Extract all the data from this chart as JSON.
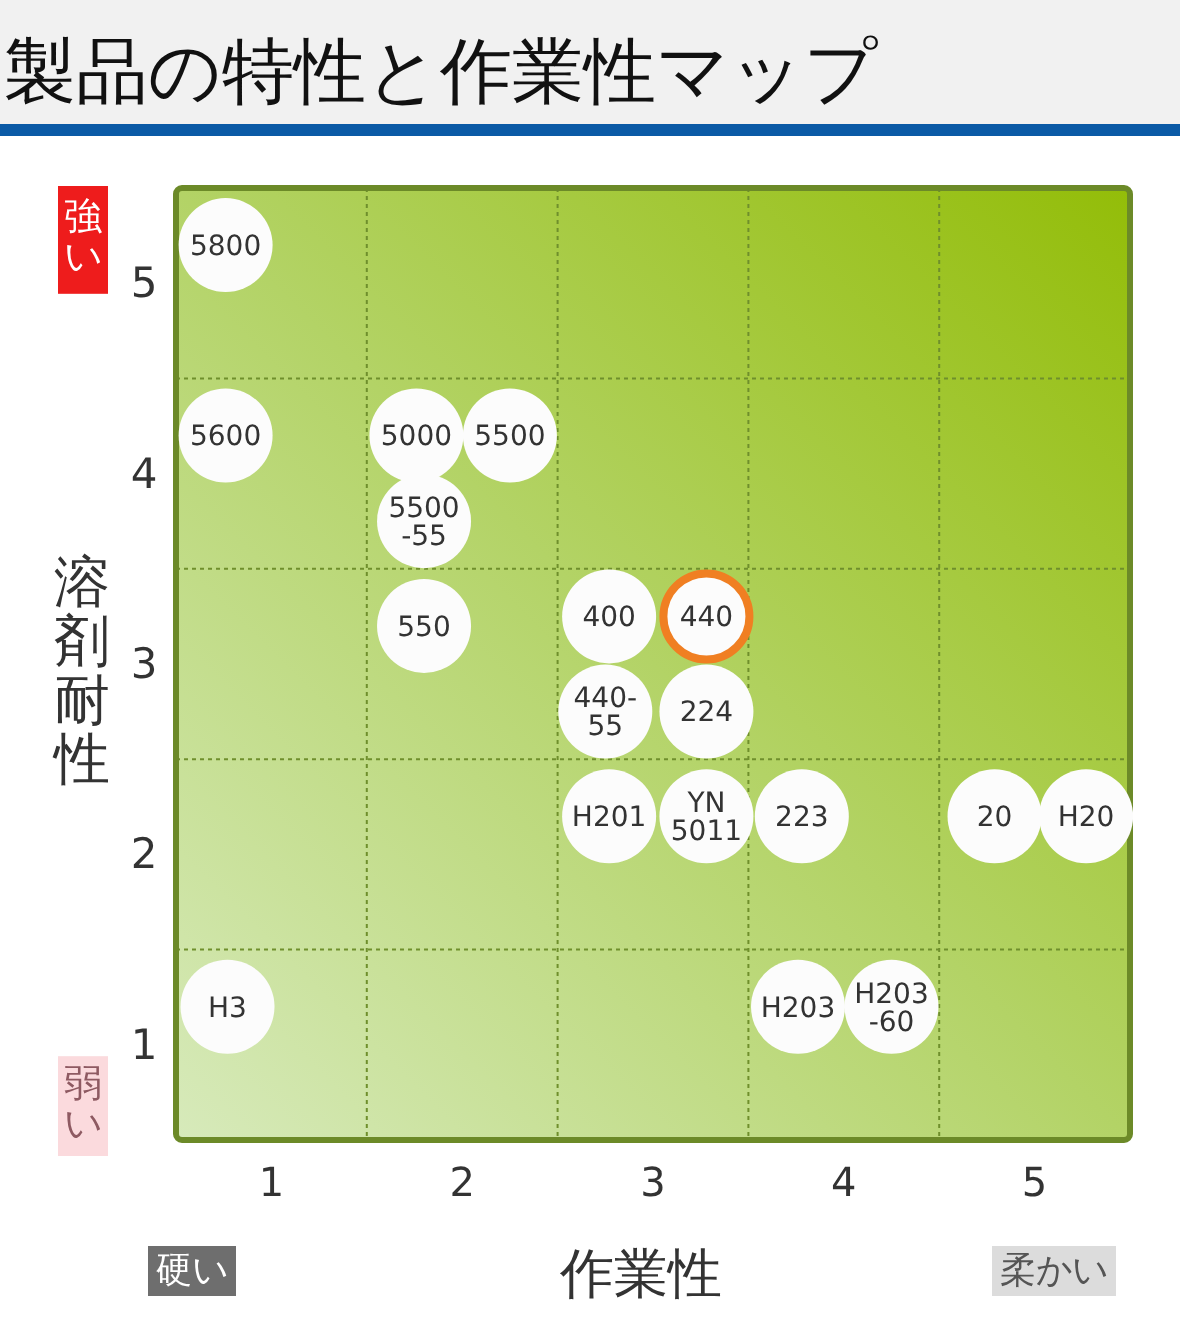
{
  "chart_data": {
    "type": "scatter",
    "title": "製品の特性と作業性マップ",
    "xlabel": "作業性",
    "ylabel": "溶剤耐性",
    "annotations": [
      "強い",
      "弱い",
      "硬い",
      "柔かい",
      {
        "text": "5800",
        "x": 0.76,
        "y": 5.2
      },
      {
        "text": "5600",
        "x": 0.76,
        "y": 4.2
      },
      {
        "text": "5000",
        "x": 1.76,
        "y": 4.2
      },
      {
        "text": "5500",
        "x": 2.25,
        "y": 4.2
      },
      {
        "text": "5500\n-55",
        "x": 1.8,
        "y": 3.75
      },
      {
        "text": "550",
        "x": 1.8,
        "y": 3.2
      },
      {
        "text": "400",
        "x": 2.77,
        "y": 3.25
      },
      {
        "text": "440",
        "x": 3.28,
        "y": 3.25
      },
      {
        "text": "440-\n55",
        "x": 2.75,
        "y": 2.75
      },
      {
        "text": "224",
        "x": 3.28,
        "y": 2.75
      },
      {
        "text": "H201",
        "x": 2.77,
        "y": 2.2
      },
      {
        "text": "YN\n5011",
        "x": 3.28,
        "y": 2.2
      },
      {
        "text": "223",
        "x": 3.78,
        "y": 2.2
      },
      {
        "text": "20",
        "x": 4.79,
        "y": 2.2
      },
      {
        "text": "H20",
        "x": 5.27,
        "y": 2.2
      },
      {
        "text": "H3",
        "x": 0.77,
        "y": 1.2
      },
      {
        "text": "H203",
        "x": 3.76,
        "y": 1.2
      },
      {
        "text": "H203\n-60",
        "x": 4.25,
        "y": 1.2
      }
    ],
    "xlim": [
      0.5,
      5.5
    ],
    "ylim": [
      0.5,
      5.5
    ],
    "xticks": [
      1,
      {
        "value": 1.5,
        "label": null
      },
      2,
      {
        "value": 2.5,
        "label": null
      },
      3,
      {
        "value": 3.5,
        "label": null
      },
      4,
      {
        "value": 4.5,
        "label": null
      },
      5
    ],
    "yticks": [
      1,
      {
        "value": 1.5,
        "label": null
      },
      2,
      {
        "value": 2.5,
        "label": null
      },
      3,
      {
        "value": 3.5,
        "label": null
      },
      4,
      {
        "value": 4.5,
        "label": null
      },
      5
    ],
    "grid": true,
    "marker": "circle",
    "series": [
      {
        "color": "#fcfcfc",
        "colors": [
          "#fcfcfc",
          "#fcfcfc",
          "#fcfcfc",
          "#fcfcfc",
          "#fcfcfc",
          "#fcfcfc",
          "#fcfcfc",
          "#f07f22",
          "#fcfcfc",
          "#fcfcfc",
          "#fcfcfc",
          "#fcfcfc",
          "#fcfcfc",
          "#fcfcfc",
          "#fcfcfc",
          "#fcfcfc",
          "#fcfcfc",
          "#fcfcfc"
        ],
        "x": [
          0.76,
          0.76,
          1.76,
          2.25,
          1.8,
          1.8,
          2.77,
          3.28,
          2.75,
          3.28,
          2.77,
          3.28,
          3.78,
          4.79,
          5.27,
          0.77,
          3.76,
          4.25
        ],
        "values": [
          5.2,
          4.2,
          4.2,
          4.2,
          3.75,
          3.2,
          3.25,
          3.25,
          2.75,
          2.75,
          2.2,
          2.2,
          2.2,
          2.2,
          2.2,
          1.2,
          1.2,
          1.2
        ]
      }
    ]
  }
}
